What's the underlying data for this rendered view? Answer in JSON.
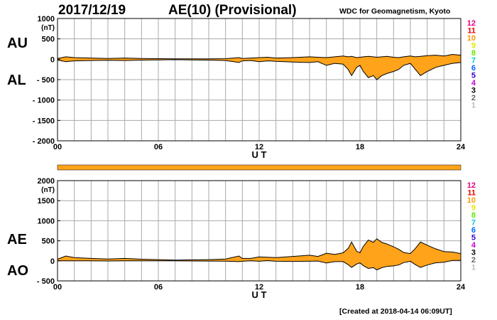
{
  "header": {
    "date": "2017/12/19",
    "title": "AE(10) (Provisional)",
    "source": "WDC for Geomagnetism, Kyoto"
  },
  "footer": {
    "created": "[Created at 2018-04-14 06:09UT]"
  },
  "colors": {
    "envelope_fill": "#ffa31a",
    "envelope_line": "#000000",
    "grid": "#aaaaaa"
  },
  "station_count_legend": [
    {
      "label": "12",
      "color": "#e6007e"
    },
    {
      "label": "11",
      "color": "#e60000"
    },
    {
      "label": "10",
      "color": "#ff9900"
    },
    {
      "label": "9",
      "color": "#e6e600"
    },
    {
      "label": "8",
      "color": "#66e600"
    },
    {
      "label": "7",
      "color": "#00cccc"
    },
    {
      "label": "6",
      "color": "#0066ff"
    },
    {
      "label": "5",
      "color": "#3300cc"
    },
    {
      "label": "4",
      "color": "#cc00cc"
    },
    {
      "label": "3",
      "color": "#000000"
    },
    {
      "label": "2",
      "color": "#666666"
    },
    {
      "label": "1",
      "color": "#bbbbbb"
    }
  ],
  "chart_data": [
    {
      "type": "area",
      "upper_label": "AU",
      "lower_label": "AL",
      "unit": "(nT)",
      "xlabel": "U T",
      "xlim": [
        0,
        24
      ],
      "ylim": [
        -2000,
        1000
      ],
      "x_ticks": [
        {
          "v": 0,
          "label": "00"
        },
        {
          "v": 6,
          "label": "06"
        },
        {
          "v": 12,
          "label": "12"
        },
        {
          "v": 18,
          "label": "18"
        },
        {
          "v": 24,
          "label": "24"
        }
      ],
      "y_ticks": [
        {
          "v": 1000,
          "label": "1000"
        },
        {
          "v": 500,
          "label": "500"
        },
        {
          "v": 0,
          "label": "0"
        },
        {
          "v": -500,
          "label": "- 500"
        },
        {
          "v": -1000,
          "label": "- 1000"
        },
        {
          "v": -1500,
          "label": "- 1500"
        },
        {
          "v": -2000,
          "label": "- 2000"
        }
      ],
      "grid": true,
      "x": [
        0,
        0.5,
        1,
        2,
        3,
        4,
        5,
        6,
        7,
        8,
        9,
        10,
        10.8,
        11,
        11.5,
        12,
        12.5,
        13,
        14,
        15,
        15.5,
        16,
        16.5,
        17,
        17.3,
        17.5,
        17.8,
        18,
        18.2,
        18.5,
        18.8,
        19,
        19.3,
        19.6,
        20,
        20.3,
        20.6,
        21,
        21.3,
        21.6,
        22,
        22.5,
        23,
        23.5,
        24
      ],
      "series": [
        {
          "name": "AU",
          "values": [
            20,
            60,
            40,
            30,
            20,
            30,
            20,
            15,
            10,
            10,
            10,
            15,
            40,
            20,
            30,
            40,
            50,
            30,
            40,
            60,
            50,
            40,
            60,
            80,
            60,
            70,
            40,
            50,
            60,
            70,
            60,
            50,
            60,
            70,
            50,
            40,
            60,
            80,
            60,
            70,
            90,
            100,
            80,
            120,
            100
          ]
        },
        {
          "name": "AL",
          "values": [
            -20,
            -60,
            -40,
            -30,
            -25,
            -30,
            -20,
            -15,
            -10,
            -15,
            -20,
            -30,
            -80,
            -40,
            -30,
            -60,
            -40,
            -50,
            -70,
            -80,
            -60,
            -150,
            -100,
            -120,
            -250,
            -400,
            -200,
            -150,
            -300,
            -450,
            -400,
            -500,
            -400,
            -350,
            -300,
            -250,
            -150,
            -100,
            -250,
            -400,
            -300,
            -200,
            -150,
            -100,
            -80
          ]
        }
      ]
    },
    {
      "type": "area",
      "upper_label": "AE",
      "lower_label": "AO",
      "unit": "(nT)",
      "xlabel": "U T",
      "xlim": [
        0,
        24
      ],
      "ylim": [
        -500,
        2000
      ],
      "x_ticks": [
        {
          "v": 0,
          "label": "00"
        },
        {
          "v": 6,
          "label": "06"
        },
        {
          "v": 12,
          "label": "12"
        },
        {
          "v": 18,
          "label": "18"
        },
        {
          "v": 24,
          "label": "24"
        }
      ],
      "y_ticks": [
        {
          "v": 2000,
          "label": "2000"
        },
        {
          "v": 1500,
          "label": "1500"
        },
        {
          "v": 1000,
          "label": "1000"
        },
        {
          "v": 500,
          "label": "500"
        },
        {
          "v": 0,
          "label": "0"
        },
        {
          "v": -500,
          "label": "- 500"
        }
      ],
      "grid": true,
      "x": [
        0,
        0.5,
        1,
        2,
        3,
        4,
        5,
        6,
        7,
        8,
        9,
        10,
        10.8,
        11,
        11.5,
        12,
        12.5,
        13,
        14,
        15,
        15.5,
        16,
        16.5,
        17,
        17.3,
        17.5,
        17.8,
        18,
        18.2,
        18.5,
        18.8,
        19,
        19.3,
        19.6,
        20,
        20.3,
        20.6,
        21,
        21.3,
        21.6,
        22,
        22.5,
        23,
        23.5,
        24
      ],
      "series": [
        {
          "name": "AE",
          "values": [
            40,
            120,
            80,
            60,
            45,
            60,
            40,
            30,
            20,
            25,
            30,
            45,
            120,
            60,
            60,
            100,
            90,
            80,
            110,
            140,
            110,
            190,
            160,
            200,
            310,
            470,
            240,
            200,
            360,
            520,
            460,
            550,
            460,
            420,
            350,
            290,
            210,
            180,
            310,
            470,
            390,
            300,
            230,
            220,
            180
          ]
        },
        {
          "name": "AO",
          "values": [
            0,
            0,
            0,
            0,
            -3,
            0,
            0,
            0,
            0,
            -3,
            -5,
            -8,
            -20,
            -10,
            0,
            -10,
            5,
            -10,
            -15,
            -10,
            -5,
            -55,
            -20,
            -20,
            -95,
            -165,
            -80,
            -50,
            -120,
            -190,
            -170,
            -225,
            -170,
            -140,
            -125,
            -105,
            -45,
            -10,
            -95,
            -165,
            -105,
            -50,
            -35,
            10,
            10
          ]
        }
      ]
    }
  ]
}
